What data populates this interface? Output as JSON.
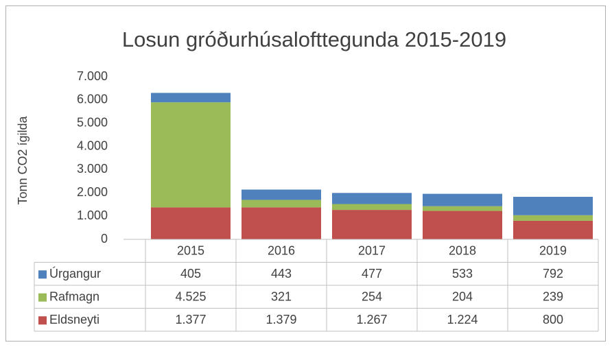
{
  "chart_data": {
    "type": "stacked_bar",
    "title": "Losun gróðurhúsalofttegunda 2015-2019",
    "y_axis_label": "Tonn CO2 ígilda",
    "categories": [
      "2015",
      "2016",
      "2017",
      "2018",
      "2019"
    ],
    "series": [
      {
        "name": "Úrgangur",
        "color": "#4f81bd",
        "values": [
          405,
          443,
          477,
          533,
          792
        ],
        "value_labels": [
          "405",
          "443",
          "477",
          "533",
          "792"
        ]
      },
      {
        "name": "Rafmagn",
        "color": "#9bbb59",
        "values": [
          4525,
          321,
          254,
          204,
          239
        ],
        "value_labels": [
          "4.525",
          "321",
          "254",
          "204",
          "239"
        ]
      },
      {
        "name": "Eldsneyti",
        "color": "#c0504d",
        "values": [
          1377,
          1379,
          1267,
          1224,
          800
        ],
        "value_labels": [
          "1.377",
          "1.379",
          "1.267",
          "1.224",
          "800"
        ]
      }
    ],
    "ylim": [
      0,
      7000
    ],
    "yticks": [
      0,
      {
        "value": 1000,
        "label": "1.000"
      },
      {
        "value": 2000,
        "label": "2.000"
      },
      {
        "value": 3000,
        "label": "3.000"
      },
      {
        "value": 4000,
        "label": "4.000"
      },
      {
        "value": 5000,
        "label": "5.000"
      },
      {
        "value": 6000,
        "label": "6.000"
      },
      {
        "value": 7000,
        "label": "7.000"
      }
    ],
    "grid": false
  }
}
